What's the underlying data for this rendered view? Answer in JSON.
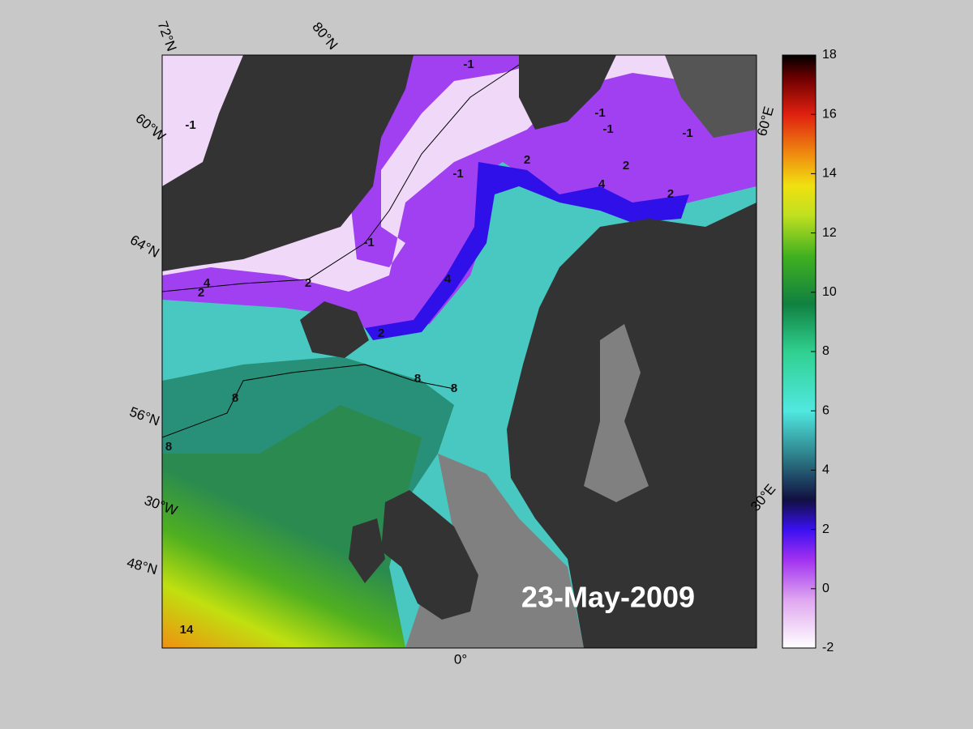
{
  "map": {
    "graticule_labels": [
      "72°N",
      "80°N",
      "60°W",
      "64°N",
      "56°N",
      "30°W",
      "48°N",
      "0°",
      "30°E",
      "60°E"
    ],
    "contour_labels": [
      "-1",
      "-1",
      "-1",
      "-1",
      "-1",
      "-1",
      "-1",
      "2",
      "2",
      "2",
      "4",
      "2",
      "4",
      "2",
      "2",
      "4",
      "8",
      "8",
      "8",
      "8",
      "14"
    ],
    "date": "23-May-2009"
  },
  "colorbar": {
    "lim": [
      -2,
      18
    ],
    "ticks": [
      -2,
      0,
      2,
      4,
      6,
      8,
      10,
      12,
      14,
      16,
      18
    ]
  }
}
